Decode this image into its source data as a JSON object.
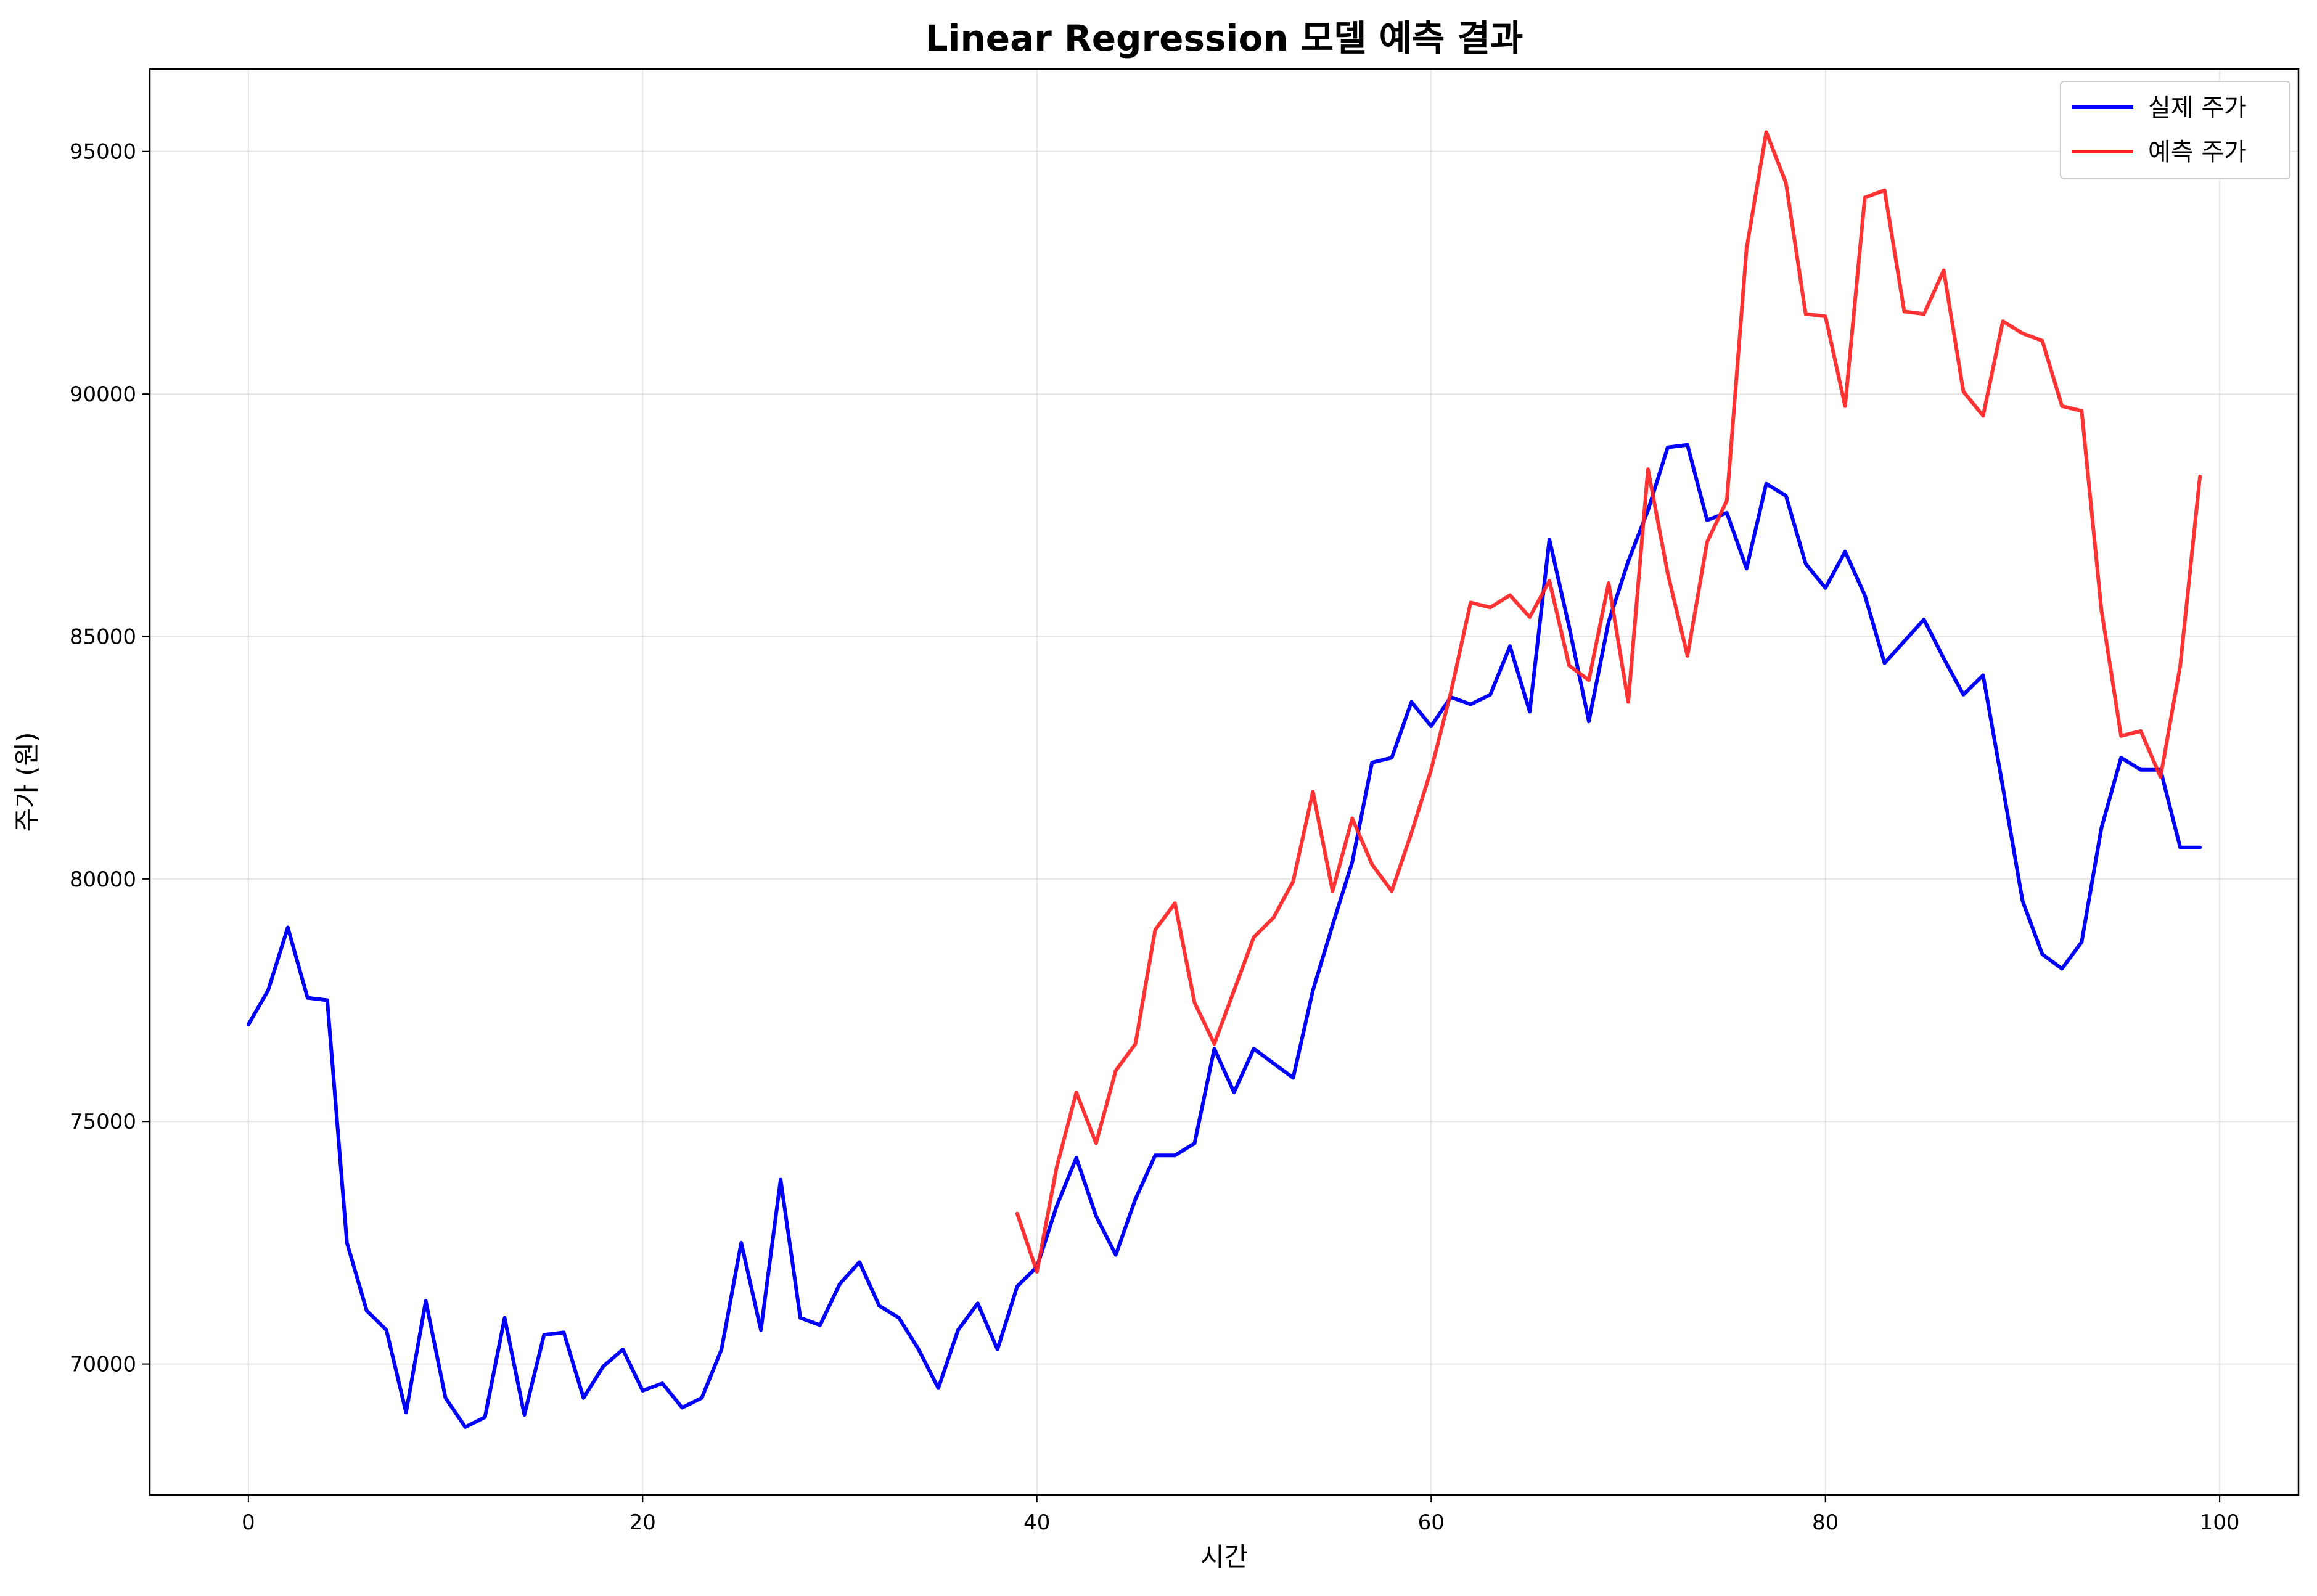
{
  "chart_data": {
    "type": "line",
    "title": "Linear Regression 모델 예측 결과",
    "xlabel": "시간",
    "ylabel": "주가 (원)",
    "xlim": [
      -5,
      104
    ],
    "ylim": [
      67300,
      96700
    ],
    "xticks": [
      0,
      20,
      40,
      60,
      80,
      100
    ],
    "yticks": [
      70000,
      75000,
      80000,
      85000,
      90000,
      95000
    ],
    "xtick_labels": [
      "0",
      "20",
      "40",
      "60",
      "80",
      "100"
    ],
    "ytick_labels": [
      "70000",
      "75000",
      "80000",
      "85000",
      "90000",
      "95000"
    ],
    "grid": true,
    "legend": "top-right",
    "series": [
      {
        "name": "실제 주가",
        "color": "#0000ff",
        "x_start": 0,
        "values": [
          77000,
          77700,
          79000,
          77550,
          77500,
          72500,
          71100,
          70700,
          69000,
          71300,
          69300,
          68700,
          68900,
          70950,
          68950,
          70600,
          70650,
          69300,
          69950,
          70300,
          69450,
          69600,
          69100,
          69300,
          70300,
          72500,
          70700,
          73800,
          70950,
          70800,
          71650,
          72100,
          71200,
          70950,
          70300,
          69500,
          70700,
          71250,
          70300,
          71600,
          72000,
          73250,
          74250,
          73050,
          72250,
          73400,
          74300,
          74300,
          74550,
          76500,
          75600,
          76500,
          76200,
          75900,
          77700,
          79050,
          80350,
          82400,
          82500,
          83650,
          83150,
          83750,
          83600,
          83800,
          84800,
          83450,
          87000,
          85200,
          83250,
          85300,
          86550,
          87600,
          88900,
          88950,
          87400,
          87550,
          86400,
          88150,
          87900,
          86500,
          86000,
          86750,
          85850,
          84450,
          84900,
          85350,
          84550,
          83800,
          84200,
          81900,
          79550,
          78450,
          78150,
          78700,
          81050,
          82500,
          82250,
          82250,
          80650,
          80650
        ]
      },
      {
        "name": "예측 주가",
        "color": "#ff2222",
        "x_start": 39,
        "values": [
          73100,
          71900,
          74050,
          75600,
          74550,
          76050,
          76600,
          78950,
          79500,
          77450,
          76600,
          77700,
          78800,
          79200,
          79950,
          81800,
          79750,
          81250,
          80300,
          79750,
          80950,
          82250,
          83850,
          85700,
          85600,
          85850,
          85400,
          86150,
          84400,
          84100,
          86100,
          83650,
          88450,
          86300,
          84600,
          86950,
          87800,
          93000,
          95400,
          94350,
          91650,
          91600,
          89750,
          94050,
          94200,
          91700,
          91650,
          92550,
          90050,
          89550,
          91500,
          91250,
          91100,
          89750,
          89650,
          85550,
          82950,
          83050,
          82100,
          84400,
          88300
        ]
      }
    ]
  }
}
